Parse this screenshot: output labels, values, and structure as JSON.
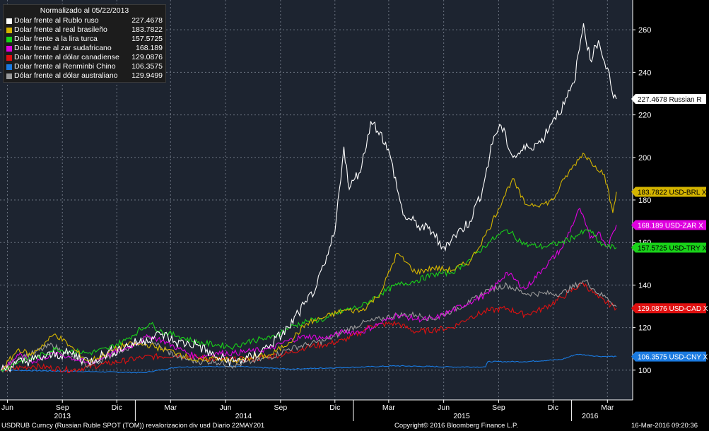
{
  "legend": {
    "title": "Normalizado al 05/22/2013",
    "items": [
      {
        "label": "Dolar frente al Rublo ruso",
        "value": "227.4678",
        "color": "#ffffff"
      },
      {
        "label": "Dolar frente al real brasileño",
        "value": "183.7822",
        "color": "#d4b400"
      },
      {
        "label": "Dolar frente a la lira turca",
        "value": "157.5725",
        "color": "#19d219"
      },
      {
        "label": "Dolar frene al zar sudafricano",
        "value": "168.189",
        "color": "#e000e0"
      },
      {
        "label": "Dolar frente al dólar canadiense",
        "value": "129.0876",
        "color": "#e01010"
      },
      {
        "label": "Dolar frente al Renminbi Chino",
        "value": "106.3575",
        "color": "#1a7ae0"
      },
      {
        "label": "Dólar frente al dólar australiano",
        "value": "129.9499",
        "color": "#9a9a9a"
      }
    ]
  },
  "footer": {
    "left": "USDRUB Curncy (Russian Ruble SPOT (TOM)) revalorizacion div usd  Diario 22MAY201",
    "center": "Copyright© 2016 Bloomberg Finance L.P.",
    "right": "16-Mar-2016 09:20:36"
  },
  "chart_data": {
    "type": "line",
    "x_range": [
      "2013-05-22",
      "2016-03-16"
    ],
    "ylim": [
      86,
      274
    ],
    "y_ticks": [
      100,
      120,
      140,
      160,
      180,
      200,
      220,
      240,
      260
    ],
    "grid": true,
    "x_months": [
      {
        "label": "Jun",
        "date": "2013-06-01"
      },
      {
        "label": "Sep",
        "date": "2013-09-01"
      },
      {
        "label": "Dic",
        "date": "2013-12-01"
      },
      {
        "label": "Mar",
        "date": "2014-03-01"
      },
      {
        "label": "Jun",
        "date": "2014-06-01"
      },
      {
        "label": "Sep",
        "date": "2014-09-01"
      },
      {
        "label": "Dic",
        "date": "2014-12-01"
      },
      {
        "label": "Mar",
        "date": "2015-03-01"
      },
      {
        "label": "Jun",
        "date": "2015-06-01"
      },
      {
        "label": "Sep",
        "date": "2015-09-01"
      },
      {
        "label": "Dic",
        "date": "2015-12-01"
      },
      {
        "label": "Mar",
        "date": "2016-03-01"
      }
    ],
    "x_years": [
      {
        "label": "2013",
        "date": "2013-09-01"
      },
      {
        "label": "2014",
        "date": "2014-07-01"
      },
      {
        "label": "2015",
        "date": "2015-07-01"
      },
      {
        "label": "2016",
        "date": "2016-02-01"
      }
    ],
    "year_dividers": [
      "2014-01-01",
      "2015-01-01",
      "2016-01-01"
    ],
    "series": [
      {
        "name": "Dolar frente al Rublo ruso",
        "color": "#ffffff",
        "tag": "227.4678 Russian R",
        "tag_bg": "#ffffff",
        "tag_fg": "#000000",
        "x": [
          "2013-05-22",
          "2013-06-15",
          "2013-07-15",
          "2013-08-15",
          "2013-09-15",
          "2013-10-15",
          "2013-11-15",
          "2013-12-15",
          "2014-01-15",
          "2014-02-15",
          "2014-03-10",
          "2014-04-15",
          "2014-05-15",
          "2014-06-15",
          "2014-07-15",
          "2014-08-15",
          "2014-09-15",
          "2014-10-01",
          "2014-10-15",
          "2014-11-01",
          "2014-11-15",
          "2014-12-01",
          "2014-12-16",
          "2014-12-25",
          "2015-01-15",
          "2015-01-30",
          "2015-02-15",
          "2015-03-05",
          "2015-03-25",
          "2015-04-20",
          "2015-05-15",
          "2015-05-28",
          "2015-06-15",
          "2015-07-15",
          "2015-08-05",
          "2015-08-24",
          "2015-09-05",
          "2015-09-25",
          "2015-10-20",
          "2015-11-10",
          "2015-12-01",
          "2015-12-20",
          "2016-01-05",
          "2016-01-21",
          "2016-02-01",
          "2016-02-15",
          "2016-02-25",
          "2016-03-04",
          "2016-03-11",
          "2016-03-16"
        ],
        "values": [
          100,
          103,
          105,
          107,
          108,
          104,
          108,
          111,
          114,
          117,
          113,
          112,
          106,
          104,
          106,
          112,
          120,
          127,
          132,
          140,
          150,
          165,
          205,
          185,
          196,
          217,
          212,
          199,
          173,
          168,
          165,
          157,
          162,
          170,
          185,
          210,
          215,
          200,
          205,
          207,
          218,
          225,
          235,
          263,
          246,
          255,
          245,
          240,
          228,
          227.5
        ]
      },
      {
        "name": "Dolar frente al real brasileño",
        "color": "#d4b400",
        "tag": "183.7822 USD-BRL X",
        "tag_bg": "#d4b400",
        "tag_fg": "#000000",
        "x": [
          "2013-05-22",
          "2013-06-20",
          "2013-07-10",
          "2013-08-20",
          "2013-09-15",
          "2013-10-15",
          "2013-11-15",
          "2013-12-15",
          "2014-01-20",
          "2014-02-15",
          "2014-03-15",
          "2014-04-15",
          "2014-05-15",
          "2014-06-15",
          "2014-07-15",
          "2014-08-15",
          "2014-09-15",
          "2014-10-15",
          "2014-11-15",
          "2014-12-15",
          "2015-01-15",
          "2015-02-15",
          "2015-03-15",
          "2015-04-15",
          "2015-05-15",
          "2015-06-15",
          "2015-07-15",
          "2015-08-15",
          "2015-09-24",
          "2015-10-15",
          "2015-11-15",
          "2015-12-01",
          "2015-12-20",
          "2016-01-20",
          "2016-02-10",
          "2016-02-25",
          "2016-03-10",
          "2016-03-16"
        ],
        "values": [
          100,
          110,
          107,
          117,
          111,
          104,
          108,
          112,
          112,
          110,
          108,
          104,
          106,
          104,
          106,
          107,
          113,
          122,
          125,
          128,
          128,
          136,
          155,
          146,
          148,
          147,
          151,
          166,
          190,
          178,
          178,
          180,
          190,
          202,
          196,
          192,
          174,
          183.8
        ]
      },
      {
        "name": "Dolar frente a la lira turca",
        "color": "#19d219",
        "tag": "157.5725 USD-TRY X",
        "tag_bg": "#19d219",
        "tag_fg": "#000000",
        "x": [
          "2013-05-22",
          "2013-06-20",
          "2013-07-20",
          "2013-08-20",
          "2013-09-15",
          "2013-10-15",
          "2013-11-15",
          "2013-12-15",
          "2014-01-25",
          "2014-02-15",
          "2014-03-15",
          "2014-04-15",
          "2014-05-15",
          "2014-06-15",
          "2014-07-15",
          "2014-08-15",
          "2014-09-15",
          "2014-10-15",
          "2014-11-15",
          "2014-12-15",
          "2015-01-15",
          "2015-02-15",
          "2015-03-15",
          "2015-04-15",
          "2015-05-15",
          "2015-06-15",
          "2015-07-15",
          "2015-08-15",
          "2015-09-15",
          "2015-10-15",
          "2015-11-15",
          "2015-12-15",
          "2016-01-15",
          "2016-02-01",
          "2016-02-15",
          "2016-03-01",
          "2016-03-16"
        ],
        "values": [
          100,
          104,
          106,
          110,
          109,
          108,
          110,
          114,
          122,
          118,
          116,
          113,
          112,
          111,
          114,
          115,
          120,
          123,
          124,
          128,
          130,
          136,
          140,
          142,
          145,
          146,
          152,
          160,
          166,
          159,
          158,
          160,
          164,
          166,
          160,
          158,
          157.6
        ]
      },
      {
        "name": "Dolar frene al zar sudafricano",
        "color": "#e000e0",
        "tag": "168.189 USD-ZAR X",
        "tag_bg": "#e000e0",
        "tag_fg": "#ffffff",
        "x": [
          "2013-05-22",
          "2013-06-20",
          "2013-07-15",
          "2013-08-20",
          "2013-09-15",
          "2013-10-15",
          "2013-11-15",
          "2013-12-15",
          "2014-01-25",
          "2014-02-15",
          "2014-03-15",
          "2014-04-15",
          "2014-05-15",
          "2014-06-15",
          "2014-07-15",
          "2014-08-15",
          "2014-09-15",
          "2014-10-15",
          "2014-11-15",
          "2014-12-15",
          "2015-01-15",
          "2015-02-15",
          "2015-03-15",
          "2015-04-15",
          "2015-05-15",
          "2015-06-15",
          "2015-07-15",
          "2015-08-15",
          "2015-09-15",
          "2015-10-15",
          "2015-11-15",
          "2015-12-15",
          "2016-01-15",
          "2016-02-01",
          "2016-02-15",
          "2016-03-01",
          "2016-03-16"
        ],
        "values": [
          100,
          107,
          104,
          108,
          106,
          103,
          107,
          110,
          116,
          114,
          110,
          106,
          108,
          108,
          109,
          110,
          114,
          116,
          115,
          118,
          118,
          122,
          126,
          124,
          124,
          128,
          132,
          136,
          146,
          138,
          148,
          157,
          176,
          162,
          165,
          158,
          168.2
        ]
      },
      {
        "name": "Dolar frente al dólar canadiense",
        "color": "#e01010",
        "tag": "129.0876 USD-CAD X",
        "tag_bg": "#e01010",
        "tag_fg": "#ffffff",
        "x": [
          "2013-05-22",
          "2013-07-15",
          "2013-09-15",
          "2013-11-15",
          "2014-01-15",
          "2014-03-15",
          "2014-05-15",
          "2014-07-15",
          "2014-09-15",
          "2014-10-15",
          "2014-11-15",
          "2014-12-15",
          "2015-01-15",
          "2015-01-30",
          "2015-03-15",
          "2015-04-15",
          "2015-05-15",
          "2015-06-15",
          "2015-07-15",
          "2015-08-15",
          "2015-09-15",
          "2015-10-15",
          "2015-11-15",
          "2015-12-15",
          "2016-01-20",
          "2016-02-15",
          "2016-03-16"
        ],
        "values": [
          100,
          102,
          100,
          103,
          106,
          107,
          105,
          105,
          108,
          111,
          112,
          114,
          118,
          121,
          122,
          118,
          119,
          120,
          125,
          128,
          129,
          126,
          129,
          134,
          141,
          134,
          129.1
        ]
      },
      {
        "name": "Dolar frente al Renminbi Chino",
        "color": "#1a7ae0",
        "tag": "106.3575 USD-CNY X",
        "tag_bg": "#1a7ae0",
        "tag_fg": "#ffffff",
        "x": [
          "2013-05-22",
          "2013-09-15",
          "2014-01-15",
          "2014-03-15",
          "2014-06-15",
          "2014-09-15",
          "2014-12-15",
          "2015-03-15",
          "2015-06-15",
          "2015-08-10",
          "2015-08-14",
          "2015-10-15",
          "2015-12-15",
          "2016-01-10",
          "2016-02-15",
          "2016-03-16"
        ],
        "values": [
          100,
          99.5,
          98.8,
          101.5,
          101.8,
          100.5,
          101.2,
          102,
          101.5,
          101.5,
          104,
          104,
          105,
          107.5,
          106.5,
          106.4
        ]
      },
      {
        "name": "Dólar frente al dólar australiano",
        "color": "#9a9a9a",
        "tag": "",
        "tag_bg": "#9a9a9a",
        "tag_fg": "#000000",
        "x": [
          "2013-05-22",
          "2013-06-20",
          "2013-07-15",
          "2013-08-15",
          "2013-09-15",
          "2013-10-15",
          "2013-11-15",
          "2013-12-15",
          "2014-01-25",
          "2014-02-15",
          "2014-03-15",
          "2014-04-15",
          "2014-05-15",
          "2014-06-15",
          "2014-07-15",
          "2014-08-15",
          "2014-09-15",
          "2014-10-15",
          "2014-11-15",
          "2014-12-15",
          "2015-01-15",
          "2015-02-15",
          "2015-03-15",
          "2015-04-15",
          "2015-05-15",
          "2015-06-15",
          "2015-07-15",
          "2015-08-15",
          "2015-09-15",
          "2015-10-15",
          "2015-11-15",
          "2015-12-15",
          "2016-01-15",
          "2016-01-25",
          "2016-02-15",
          "2016-03-01",
          "2016-03-16"
        ],
        "values": [
          100,
          106,
          108,
          112,
          106,
          102,
          106,
          110,
          115,
          110,
          106,
          104,
          104,
          102,
          104,
          106,
          110,
          112,
          114,
          118,
          122,
          124,
          126,
          126,
          124,
          128,
          132,
          138,
          140,
          136,
          136,
          136,
          141,
          142,
          136,
          134,
          129.9
        ]
      }
    ]
  }
}
